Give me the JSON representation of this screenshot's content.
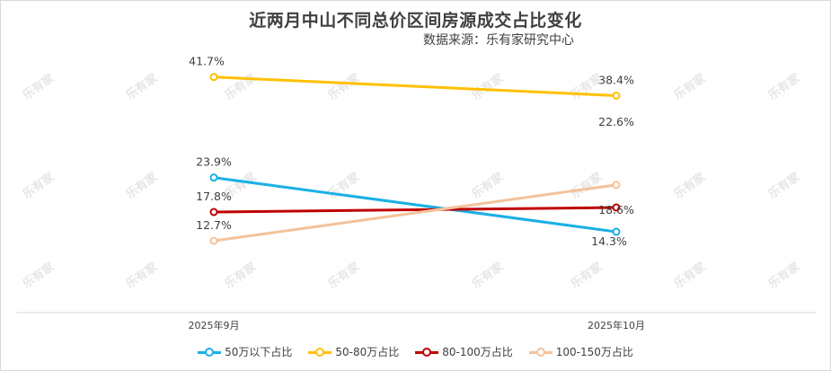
{
  "title": "近两月中山不同总价区间房源成交占比变化",
  "subtitle": "数据来源：乐有家研究中心",
  "watermark": "乐有家",
  "chart_data": {
    "type": "line",
    "categories": [
      "2025年9月",
      "2025年10月"
    ],
    "ylim": [
      0,
      50
    ],
    "grid": false,
    "legend_position": "bottom",
    "series": [
      {
        "name": "50万以下占比",
        "values": [
          23.9,
          14.3
        ],
        "labels": [
          "23.9%",
          "14.3%"
        ],
        "color": "#1ab0e6"
      },
      {
        "name": "50-80万占比",
        "values": [
          41.7,
          38.4
        ],
        "labels": [
          "41.7%",
          "38.4%"
        ],
        "color": "#ffc000"
      },
      {
        "name": "80-100万占比",
        "values": [
          17.8,
          18.6
        ],
        "labels": [
          "17.8%",
          "18.6%"
        ],
        "color": "#c00000"
      },
      {
        "name": "100-150万占比",
        "values": [
          12.7,
          22.6
        ],
        "labels": [
          "12.7%",
          "22.6%"
        ],
        "color": "#f4c29a"
      }
    ]
  }
}
